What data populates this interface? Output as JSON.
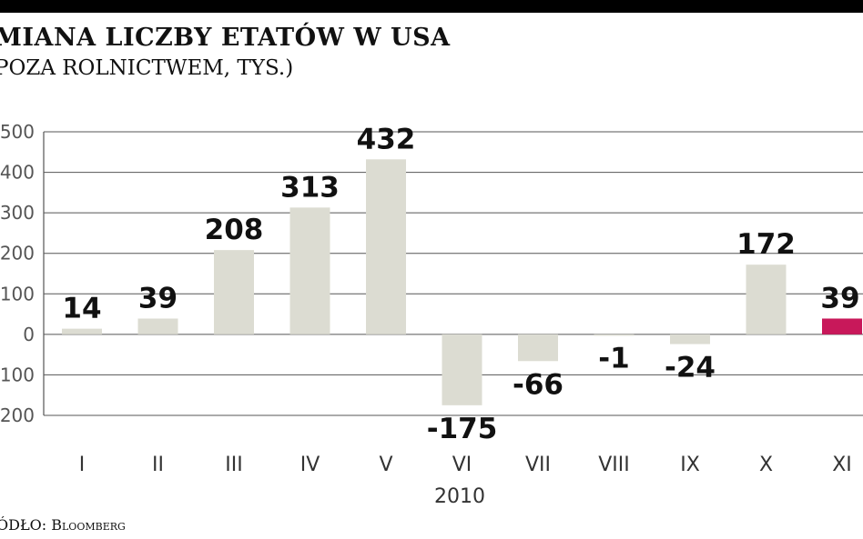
{
  "header": {
    "title": "MIANA LICZBY ETATÓW W USA",
    "subtitle": "POZA ROLNICTWEM, TYS.)"
  },
  "source": "ÓDŁO: Bloomberg",
  "chart_data": {
    "type": "bar",
    "title": "MIANA LICZBY ETATÓW W USA",
    "subtitle": "POZA ROLNICTWEM, TYS.)",
    "categories": [
      "I",
      "II",
      "III",
      "IV",
      "V",
      "VI",
      "VII",
      "VIII",
      "IX",
      "X",
      "XI"
    ],
    "values": [
      14,
      39,
      208,
      313,
      432,
      -175,
      -66,
      -1,
      -24,
      172,
      39
    ],
    "data_labels": [
      "14",
      "39",
      "208",
      "313",
      "432",
      "-175",
      "-66",
      "-1",
      "-24",
      "172",
      "39"
    ],
    "xlabel": "2010",
    "ylabel": "",
    "ylim": [
      -200,
      500
    ],
    "yticks": [
      500,
      400,
      300,
      200,
      100,
      0,
      -100,
      -200
    ],
    "ytick_labels": [
      "500",
      "400",
      "300",
      "200",
      "100",
      "0",
      "-100",
      "-200"
    ],
    "grid": true,
    "colors": {
      "bar": "#dcdcd2",
      "highlight": "#c8185a",
      "grid": "#555555",
      "top_bar": "#000000"
    },
    "highlight_index": 10
  }
}
